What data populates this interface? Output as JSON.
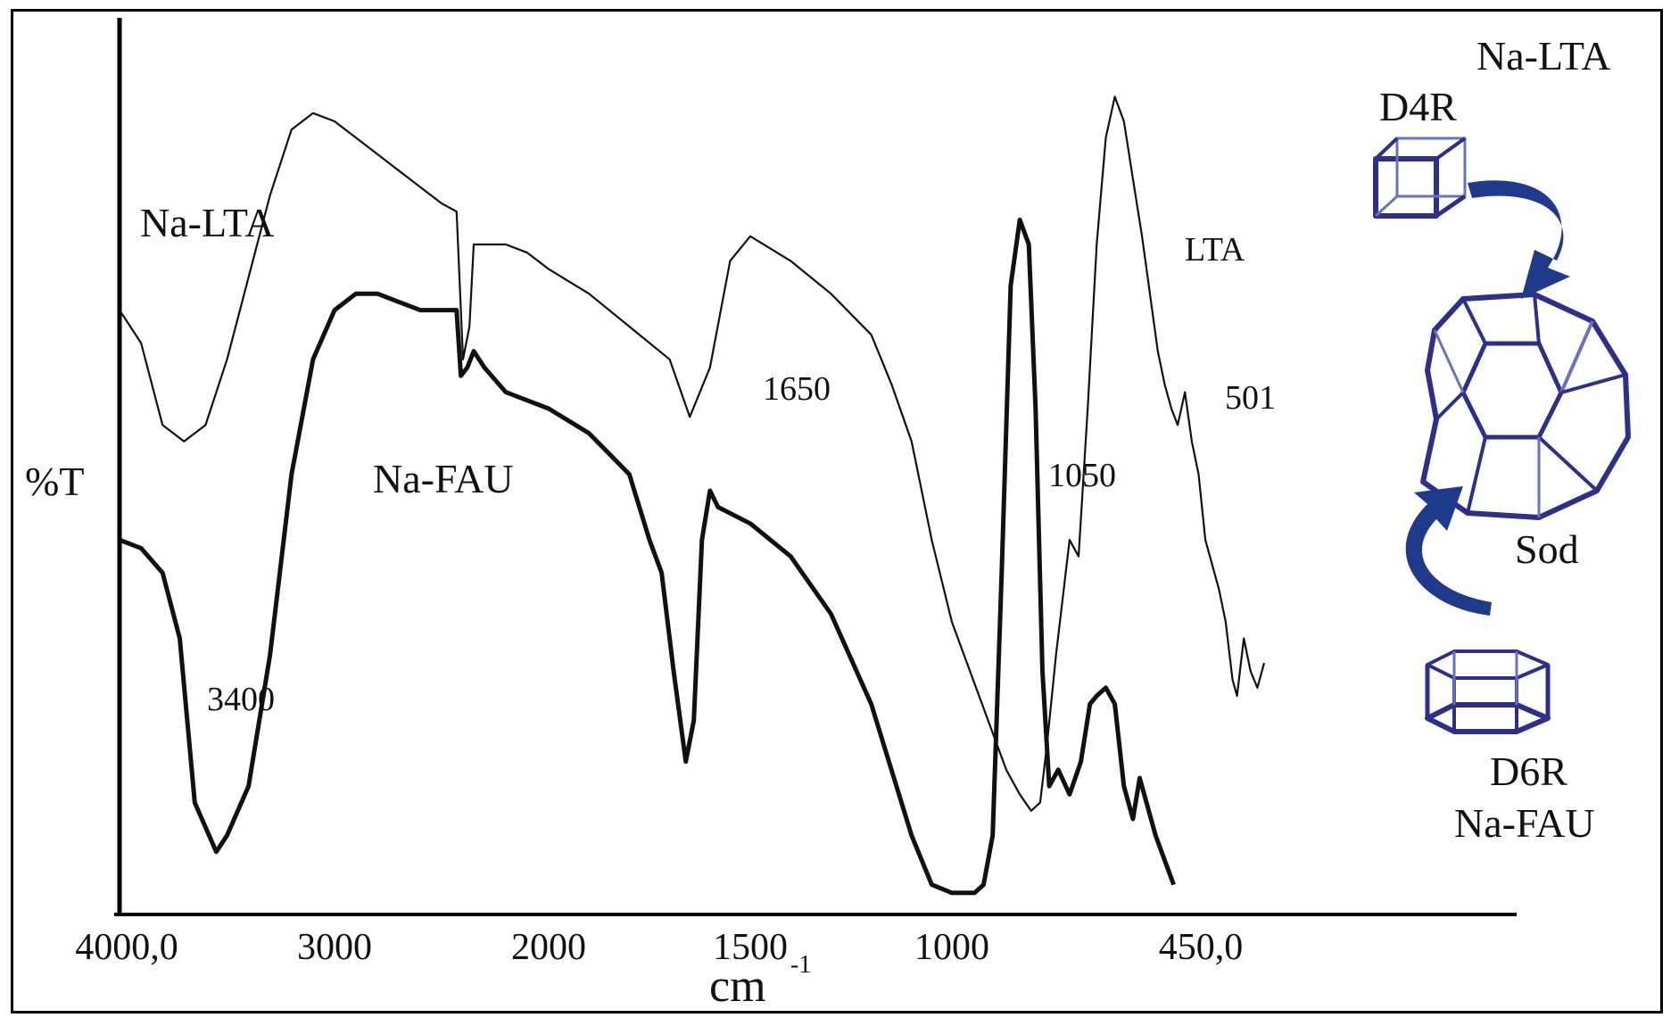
{
  "chart_data": {
    "type": "line",
    "xlabel": "cm",
    "xlabel_superscript": "-1",
    "ylabel": "%T",
    "x_tick_labels": [
      {
        "value": 4000,
        "label": "4000,0"
      },
      {
        "value": 3000,
        "label": "3000"
      },
      {
        "value": 2000,
        "label": "2000"
      },
      {
        "value": 1500,
        "label": "1500"
      },
      {
        "value": 1000,
        "label": "1000"
      },
      {
        "value": 450,
        "label": "450,0"
      }
    ],
    "y_scale": "relative %T, no tick labels",
    "series": [
      {
        "name": "Na-LTA",
        "points": [
          [
            4000,
            72
          ],
          [
            3900,
            68
          ],
          [
            3800,
            58
          ],
          [
            3700,
            56
          ],
          [
            3600,
            58
          ],
          [
            3500,
            66
          ],
          [
            3400,
            76
          ],
          [
            3300,
            86
          ],
          [
            3200,
            94
          ],
          [
            3100,
            96
          ],
          [
            3000,
            95
          ],
          [
            2900,
            93
          ],
          [
            2800,
            91
          ],
          [
            2700,
            89
          ],
          [
            2600,
            87
          ],
          [
            2500,
            85
          ],
          [
            2430,
            84
          ],
          [
            2400,
            66
          ],
          [
            2370,
            70
          ],
          [
            2350,
            80
          ],
          [
            2200,
            80
          ],
          [
            2100,
            79
          ],
          [
            2000,
            77
          ],
          [
            1900,
            74
          ],
          [
            1800,
            70
          ],
          [
            1700,
            66
          ],
          [
            1650,
            59
          ],
          [
            1600,
            65
          ],
          [
            1550,
            78
          ],
          [
            1500,
            81
          ],
          [
            1400,
            78
          ],
          [
            1300,
            74
          ],
          [
            1200,
            69
          ],
          [
            1150,
            63
          ],
          [
            1100,
            56
          ],
          [
            1050,
            44
          ],
          [
            1000,
            34
          ],
          [
            960,
            28
          ],
          [
            920,
            22
          ],
          [
            880,
            16
          ],
          [
            850,
            13
          ],
          [
            825,
            11
          ],
          [
            805,
            12
          ],
          [
            790,
            19
          ],
          [
            770,
            30
          ],
          [
            740,
            44
          ],
          [
            720,
            42
          ],
          [
            700,
            60
          ],
          [
            680,
            80
          ],
          [
            660,
            93
          ],
          [
            640,
            98
          ],
          [
            620,
            95
          ],
          [
            600,
            88
          ],
          [
            580,
            81
          ],
          [
            560,
            73
          ],
          [
            545,
            67
          ],
          [
            530,
            63
          ],
          [
            515,
            60
          ],
          [
            501,
            58
          ],
          [
            485,
            62
          ],
          [
            470,
            56
          ],
          [
            455,
            52
          ],
          [
            440,
            44
          ],
          [
            425,
            41
          ],
          [
            410,
            38
          ],
          [
            395,
            34
          ],
          [
            380,
            27
          ],
          [
            370,
            25
          ],
          [
            355,
            32
          ],
          [
            340,
            28
          ],
          [
            325,
            26
          ],
          [
            310,
            29
          ]
        ],
        "style": "thin"
      },
      {
        "name": "Na-FAU",
        "points": [
          [
            4000,
            44
          ],
          [
            3900,
            43
          ],
          [
            3800,
            40
          ],
          [
            3720,
            32
          ],
          [
            3650,
            12
          ],
          [
            3550,
            6
          ],
          [
            3500,
            8
          ],
          [
            3400,
            14
          ],
          [
            3300,
            30
          ],
          [
            3200,
            52
          ],
          [
            3100,
            66
          ],
          [
            3000,
            72
          ],
          [
            2900,
            74
          ],
          [
            2800,
            74
          ],
          [
            2700,
            73
          ],
          [
            2600,
            72
          ],
          [
            2500,
            72
          ],
          [
            2430,
            72
          ],
          [
            2410,
            64
          ],
          [
            2380,
            65
          ],
          [
            2350,
            67
          ],
          [
            2300,
            65
          ],
          [
            2200,
            62
          ],
          [
            2100,
            61
          ],
          [
            2000,
            60
          ],
          [
            1900,
            57
          ],
          [
            1800,
            52
          ],
          [
            1750,
            44
          ],
          [
            1720,
            40
          ],
          [
            1690,
            28
          ],
          [
            1660,
            17
          ],
          [
            1640,
            22
          ],
          [
            1620,
            44
          ],
          [
            1600,
            50
          ],
          [
            1580,
            48
          ],
          [
            1500,
            46
          ],
          [
            1400,
            42
          ],
          [
            1300,
            35
          ],
          [
            1200,
            24
          ],
          [
            1100,
            8
          ],
          [
            1050,
            2
          ],
          [
            1000,
            1
          ],
          [
            950,
            1
          ],
          [
            930,
            2
          ],
          [
            910,
            8
          ],
          [
            890,
            40
          ],
          [
            870,
            75
          ],
          [
            850,
            83
          ],
          [
            830,
            80
          ],
          [
            815,
            60
          ],
          [
            800,
            28
          ],
          [
            785,
            14
          ],
          [
            765,
            16
          ],
          [
            740,
            13
          ],
          [
            715,
            17
          ],
          [
            695,
            24
          ],
          [
            680,
            25
          ],
          [
            660,
            26
          ],
          [
            640,
            24
          ],
          [
            620,
            14
          ],
          [
            600,
            10
          ],
          [
            585,
            15
          ],
          [
            570,
            12
          ],
          [
            550,
            8
          ],
          [
            530,
            5
          ],
          [
            510,
            2
          ]
        ],
        "style": "thick"
      }
    ],
    "annotations": [
      {
        "text": "Na-LTA",
        "target": "series-label"
      },
      {
        "text": "Na-FAU",
        "target": "series-label"
      },
      {
        "text": "3400"
      },
      {
        "text": "1650"
      },
      {
        "text": "1050"
      },
      {
        "text": "LTA"
      },
      {
        "text": "501"
      }
    ],
    "inset": {
      "labels": [
        "Na-LTA",
        "D4R",
        "Sod",
        "D6R",
        "Na-FAU"
      ],
      "structure_color": "#2e2f88",
      "arrow_color": "#1f3a8a"
    },
    "grid": false,
    "legend": "none"
  }
}
